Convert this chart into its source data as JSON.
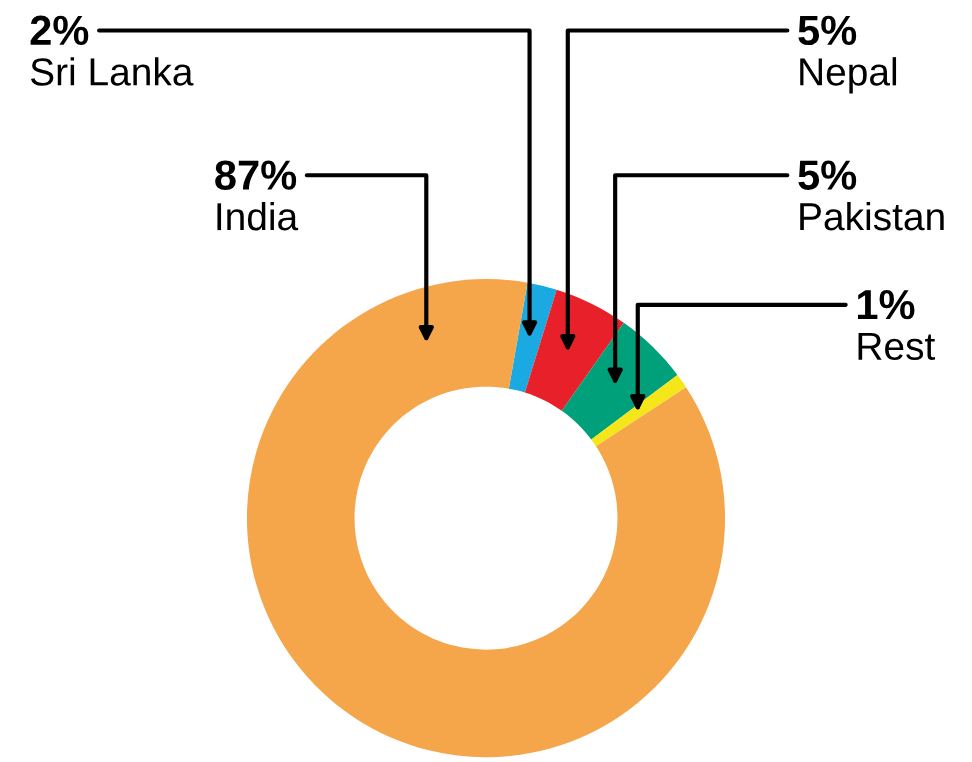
{
  "chart_data": {
    "type": "donut",
    "categories": [
      "Sri Lanka",
      "Nepal",
      "Pakistan",
      "Rest",
      "India"
    ],
    "values": [
      2,
      5,
      5,
      1,
      87
    ],
    "value_labels": [
      "2%",
      "5%",
      "5%",
      "1%",
      "87%"
    ],
    "colors": [
      "#1aa9e0",
      "#e8202a",
      "#00a17a",
      "#f5e61a",
      "#f5a54a"
    ],
    "legend": false
  }
}
